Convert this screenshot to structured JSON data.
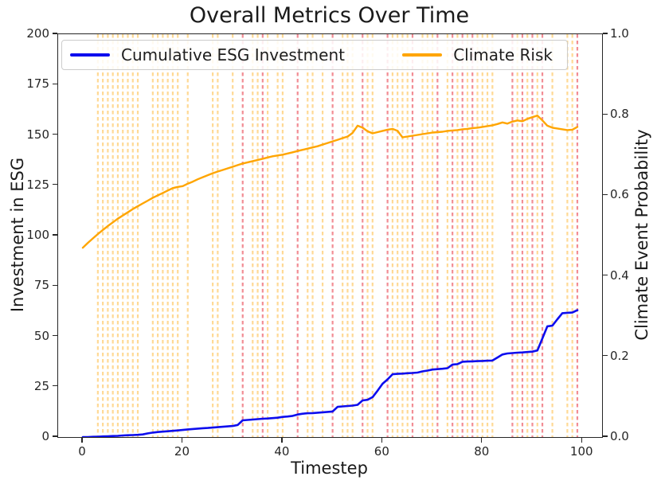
{
  "title": "Overall Metrics Over Time",
  "legend": {
    "entries": [
      {
        "label": "Cumulative ESG Investment",
        "color": "#0d0dee"
      },
      {
        "label": "Climate Risk",
        "color": "#ffa500"
      }
    ]
  },
  "chart_data": {
    "type": "line",
    "title": "Overall Metrics Over Time",
    "grid": false,
    "legend_position": "upper center, 2 columns, semi-transparent box",
    "x_axis": {
      "label": "Timestep",
      "range": [
        -4.95,
        103.95
      ],
      "ticks": [
        0,
        20,
        40,
        60,
        80,
        100
      ]
    },
    "y_left": {
      "label": "Investment in ESG",
      "range": [
        0,
        200
      ],
      "ticks": [
        0,
        25,
        50,
        75,
        100,
        125,
        150,
        175,
        200
      ]
    },
    "y_right": {
      "label": "Climate Event Probability",
      "range": [
        0.0,
        1.0
      ],
      "ticks": [
        "0.0",
        "0.2",
        "0.4",
        "0.6",
        "0.8",
        "1.0"
      ]
    },
    "x": [
      0,
      1,
      2,
      3,
      4,
      5,
      6,
      7,
      8,
      9,
      10,
      11,
      12,
      13,
      14,
      15,
      16,
      17,
      18,
      19,
      20,
      21,
      22,
      23,
      24,
      25,
      26,
      27,
      28,
      29,
      30,
      31,
      32,
      33,
      34,
      35,
      36,
      37,
      38,
      39,
      40,
      41,
      42,
      43,
      44,
      45,
      46,
      47,
      48,
      49,
      50,
      51,
      52,
      53,
      54,
      55,
      56,
      57,
      58,
      59,
      60,
      61,
      62,
      63,
      64,
      65,
      66,
      67,
      68,
      69,
      70,
      71,
      72,
      73,
      74,
      75,
      76,
      77,
      78,
      79,
      80,
      81,
      82,
      83,
      84,
      85,
      86,
      87,
      88,
      89,
      90,
      91,
      92,
      93,
      94,
      95,
      96,
      97,
      98,
      99
    ],
    "series": [
      {
        "name": "Cumulative ESG Investment",
        "axis": "left",
        "color": "#0d0dee",
        "line_width": 2.6,
        "values": [
          0,
          0,
          0.1,
          0.2,
          0.3,
          0.4,
          0.5,
          0.6,
          0.8,
          0.9,
          1,
          1.1,
          1.3,
          1.8,
          2.2,
          2.5,
          2.7,
          2.9,
          3.1,
          3.3,
          3.5,
          3.8,
          4,
          4.2,
          4.4,
          4.5,
          4.7,
          4.9,
          5.1,
          5.3,
          5.5,
          6,
          8.3,
          8.5,
          8.7,
          8.9,
          9.1,
          9.2,
          9.4,
          9.6,
          10,
          10.2,
          10.5,
          11.2,
          11.6,
          11.8,
          11.9,
          12.1,
          12.3,
          12.5,
          12.7,
          15,
          15.2,
          15.4,
          15.6,
          16,
          18.2,
          18.5,
          19.8,
          23,
          26.5,
          28.6,
          31.2,
          31.4,
          31.5,
          31.7,
          31.8,
          32,
          32.6,
          33,
          33.5,
          33.7,
          33.9,
          34.2,
          36,
          36.2,
          37.4,
          37.5,
          37.6,
          37.7,
          37.8,
          37.9,
          38,
          39.5,
          41,
          41.5,
          41.7,
          41.9,
          42,
          42.2,
          42.4,
          43,
          49,
          55,
          55.3,
          58.5,
          61.5,
          61.7,
          61.8,
          63
        ]
      },
      {
        "name": "Climate Risk",
        "axis": "right",
        "color": "#ffa500",
        "line_width": 2.4,
        "values": [
          0.47,
          0.482,
          0.493,
          0.504,
          0.514,
          0.524,
          0.533,
          0.542,
          0.55,
          0.558,
          0.566,
          0.573,
          0.58,
          0.587,
          0.594,
          0.6,
          0.606,
          0.612,
          0.618,
          0.621,
          0.623,
          0.629,
          0.634,
          0.64,
          0.645,
          0.65,
          0.655,
          0.659,
          0.663,
          0.667,
          0.671,
          0.675,
          0.679,
          0.682,
          0.685,
          0.688,
          0.691,
          0.694,
          0.697,
          0.699,
          0.701,
          0.704,
          0.707,
          0.71,
          0.713,
          0.716,
          0.719,
          0.722,
          0.726,
          0.73,
          0.734,
          0.738,
          0.742,
          0.746,
          0.755,
          0.773,
          0.768,
          0.759,
          0.754,
          0.757,
          0.76,
          0.763,
          0.765,
          0.76,
          0.744,
          0.746,
          0.748,
          0.75,
          0.752,
          0.754,
          0.756,
          0.757,
          0.758,
          0.76,
          0.761,
          0.762,
          0.764,
          0.765,
          0.767,
          0.768,
          0.77,
          0.772,
          0.774,
          0.777,
          0.781,
          0.778,
          0.783,
          0.786,
          0.784,
          0.79,
          0.794,
          0.798,
          0.786,
          0.773,
          0.768,
          0.766,
          0.764,
          0.762,
          0.763,
          0.77
        ]
      }
    ],
    "event_lines": {
      "style": "vertical dashed lines spanning full plot height",
      "orange_color": "#ffa500",
      "orange_opacity": 0.42,
      "orange_timesteps": [
        3,
        4,
        5,
        6,
        7,
        8,
        9,
        10,
        11,
        14,
        15,
        16,
        17,
        18,
        19,
        21,
        26,
        27,
        30,
        34,
        35,
        37,
        39,
        40,
        45,
        46,
        48,
        52,
        53,
        54,
        57,
        58,
        62,
        63,
        64,
        65,
        68,
        69,
        70,
        73,
        75,
        77,
        79,
        80,
        81,
        82,
        87,
        89,
        91,
        94,
        97,
        98
      ],
      "red_color": "#e7303c",
      "red_opacity": 0.55,
      "red_timesteps": [
        32,
        36,
        43,
        50,
        56,
        61,
        66,
        71,
        74,
        76,
        78,
        86,
        88,
        90,
        92,
        99
      ]
    }
  }
}
